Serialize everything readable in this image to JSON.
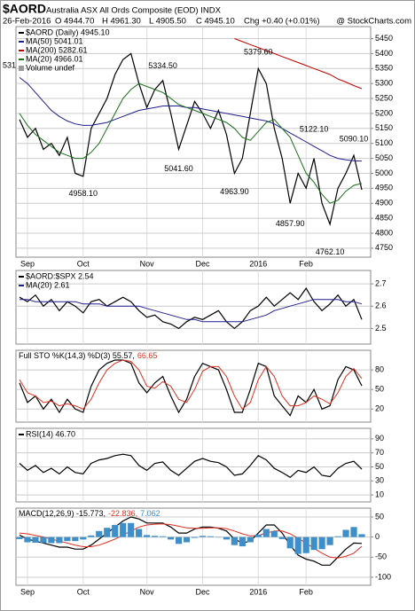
{
  "header": {
    "symbol": "$AORD",
    "title": "Australia ASX All Ords Composite (EOD) INDX",
    "date": "26-Feb-2016",
    "open": "O 4944.70",
    "high": "H 4961.30",
    "low": "L 4905.50",
    "close": "C 4945.10",
    "change": "Chg +0.40 (+0.01%)",
    "credit": "@ StockCharts.com"
  },
  "chart_data": [
    {
      "type": "line",
      "categories": [
        null,
        "Sep",
        null,
        null,
        null,
        null,
        null,
        null,
        "Oct",
        null,
        null,
        null,
        null,
        null,
        null,
        null,
        "Nov",
        null,
        null,
        null,
        null,
        null,
        null,
        "Dec",
        null,
        null,
        null,
        null,
        null,
        null,
        "2016",
        null,
        null,
        null,
        null,
        null,
        "Feb",
        null,
        null,
        null,
        null,
        null,
        null,
        null
      ],
      "ylim": [
        4720,
        5490
      ],
      "yticks": [
        4750,
        4800,
        4850,
        4900,
        4950,
        5000,
        5050,
        5100,
        5150,
        5200,
        5250,
        5300,
        5350,
        5400,
        5450
      ],
      "clipped_label": "531",
      "legend_extra": [
        "Volume undef"
      ],
      "series": [
        {
          "name": "$AORD (Daily) 4945.10",
          "color": "#000000",
          "values": [
            5180,
            5120,
            5150,
            5080,
            5100,
            5060,
            5120,
            5000,
            4990,
            5150,
            5200,
            5250,
            5330,
            5380,
            5400,
            5300,
            5220,
            5280,
            5310,
            5200,
            5080,
            5160,
            5240,
            5200,
            5150,
            5210,
            5130,
            5000,
            5050,
            5200,
            5350,
            5300,
            5150,
            5050,
            4900,
            5000,
            4950,
            5050,
            4900,
            4830,
            4950,
            5000,
            5060,
            4945.1
          ]
        },
        {
          "name": "MA(50) 5041.01",
          "color": "#1f1f8f",
          "values": [
            5320,
            5300,
            5270,
            5240,
            5210,
            5190,
            5175,
            5165,
            5160,
            5160,
            5165,
            5170,
            5180,
            5190,
            5200,
            5210,
            5215,
            5220,
            5225,
            5225,
            5225,
            5220,
            5220,
            5215,
            5210,
            5205,
            5200,
            5195,
            5190,
            5185,
            5180,
            5175,
            5165,
            5150,
            5135,
            5120,
            5105,
            5090,
            5075,
            5060,
            5050,
            5045,
            5042,
            5041.01
          ]
        },
        {
          "name": "MA(200) 5282.61",
          "color": "#c00000",
          "values": [
            null,
            null,
            null,
            null,
            null,
            null,
            null,
            null,
            null,
            null,
            null,
            null,
            null,
            null,
            null,
            null,
            null,
            null,
            null,
            null,
            null,
            null,
            null,
            null,
            null,
            null,
            null,
            5450,
            5440,
            5430,
            5420,
            5410,
            5400,
            5390,
            5380,
            5370,
            5360,
            5350,
            5340,
            5330,
            5315,
            5305,
            5293,
            5282.61
          ]
        },
        {
          "name": "MA(20) 4966.01",
          "color": "#1a6e1a",
          "values": [
            5200,
            5160,
            5130,
            5110,
            5090,
            5070,
            5060,
            5050,
            5050,
            5070,
            5100,
            5150,
            5200,
            5250,
            5280,
            5300,
            5290,
            5280,
            5270,
            5250,
            5230,
            5220,
            5210,
            5200,
            5190,
            5180,
            5170,
            5150,
            5120,
            5110,
            5140,
            5170,
            5180,
            5150,
            5120,
            5060,
            5000,
            4970,
            4930,
            4900,
            4910,
            4940,
            4960,
            4966.01
          ]
        }
      ],
      "annotations": [
        {
          "label": "4958.10",
          "value": 4958.1,
          "index": 8
        },
        {
          "label": "5334.50",
          "value": 5334.5,
          "index": 18
        },
        {
          "label": "5041.60",
          "value": 5041.6,
          "index": 20
        },
        {
          "label": "4963.90",
          "value": 4963.9,
          "index": 27
        },
        {
          "label": "5379.60",
          "value": 5379.6,
          "index": 30
        },
        {
          "label": "4857.90",
          "value": 4857.9,
          "index": 34
        },
        {
          "label": "5122.10",
          "value": 5122.1,
          "index": 37
        },
        {
          "label": "4762.10",
          "value": 4762.1,
          "index": 39
        },
        {
          "label": "5090.10",
          "value": 5090.1,
          "index": 42
        }
      ]
    },
    {
      "type": "line",
      "ylim": [
        2.43,
        2.76
      ],
      "yticks": [
        2.5,
        2.6,
        2.7
      ],
      "series": [
        {
          "name": "$AORD:$SPX 2.54",
          "color": "#000000",
          "values": [
            2.64,
            2.62,
            2.65,
            2.6,
            2.63,
            2.58,
            2.62,
            2.6,
            2.57,
            2.62,
            2.63,
            2.6,
            2.62,
            2.64,
            2.62,
            2.58,
            2.55,
            2.56,
            2.53,
            2.52,
            2.5,
            2.53,
            2.55,
            2.54,
            2.56,
            2.58,
            2.53,
            2.5,
            2.53,
            2.58,
            2.6,
            2.64,
            2.6,
            2.63,
            2.66,
            2.63,
            2.68,
            2.62,
            2.58,
            2.61,
            2.65,
            2.6,
            2.63,
            2.54
          ]
        },
        {
          "name": "MA(20) 2.61",
          "color": "#1f1f8f",
          "values": [
            2.63,
            2.63,
            2.62,
            2.62,
            2.62,
            2.62,
            2.62,
            2.62,
            2.61,
            2.61,
            2.61,
            2.6,
            2.6,
            2.6,
            2.6,
            2.6,
            2.59,
            2.58,
            2.57,
            2.56,
            2.55,
            2.54,
            2.54,
            2.53,
            2.53,
            2.53,
            2.53,
            2.53,
            2.53,
            2.54,
            2.55,
            2.56,
            2.58,
            2.59,
            2.6,
            2.61,
            2.62,
            2.63,
            2.63,
            2.63,
            2.63,
            2.62,
            2.62,
            2.61
          ]
        }
      ]
    },
    {
      "type": "line",
      "ylim": [
        0,
        110
      ],
      "yticks": [
        20,
        50,
        80
      ],
      "legend_inline": true,
      "series": [
        {
          "name": "Full STO %K(14,3) %D(3) 55.57,",
          "color": "#000000",
          "values": [
            60,
            30,
            40,
            20,
            35,
            15,
            35,
            20,
            15,
            55,
            80,
            90,
            95,
            95,
            90,
            60,
            45,
            60,
            70,
            40,
            15,
            35,
            70,
            90,
            85,
            80,
            50,
            15,
            15,
            50,
            90,
            85,
            40,
            25,
            10,
            40,
            30,
            50,
            20,
            25,
            65,
            85,
            80,
            55.57
          ]
        },
        {
          "name": "66.65",
          "color": "#e03020",
          "values": [
            65,
            45,
            40,
            30,
            32,
            25,
            28,
            25,
            20,
            35,
            60,
            80,
            90,
            95,
            93,
            80,
            55,
            52,
            62,
            55,
            35,
            30,
            50,
            78,
            85,
            85,
            70,
            40,
            20,
            30,
            65,
            85,
            70,
            40,
            25,
            25,
            30,
            40,
            35,
            28,
            45,
            70,
            82,
            66.65
          ]
        }
      ]
    },
    {
      "type": "line",
      "ylim": [
        0,
        105
      ],
      "yticks": [
        10,
        30,
        50,
        70,
        90
      ],
      "series": [
        {
          "name": "RSI(14) 46.70",
          "color": "#000000",
          "values": [
            55,
            45,
            52,
            42,
            48,
            40,
            50,
            42,
            40,
            55,
            60,
            62,
            66,
            68,
            66,
            52,
            45,
            55,
            57,
            45,
            38,
            48,
            58,
            62,
            58,
            56,
            50,
            38,
            40,
            52,
            66,
            60,
            48,
            42,
            35,
            45,
            42,
            50,
            38,
            36,
            48,
            55,
            58,
            46.7
          ]
        }
      ]
    },
    {
      "type": "line",
      "ylim": [
        -120,
        72
      ],
      "yticks": [
        -100,
        -50,
        0,
        50
      ],
      "legend_inline": true,
      "categories": [
        null,
        "Sep",
        null,
        null,
        null,
        null,
        null,
        null,
        "Oct",
        null,
        null,
        null,
        null,
        null,
        null,
        null,
        "Nov",
        null,
        null,
        null,
        null,
        null,
        null,
        "Dec",
        null,
        null,
        null,
        null,
        null,
        null,
        "2016",
        null,
        null,
        null,
        null,
        null,
        "Feb",
        null,
        null,
        null,
        null,
        null,
        null,
        null
      ],
      "series": [
        {
          "name": "MACD(12,26,9) -15.773,",
          "color": "#000000",
          "values": [
            5,
            -5,
            -10,
            -15,
            -20,
            -25,
            -25,
            -30,
            -30,
            -20,
            -5,
            10,
            25,
            40,
            50,
            45,
            35,
            35,
            35,
            25,
            10,
            10,
            20,
            25,
            25,
            22,
            15,
            -5,
            -15,
            -10,
            10,
            30,
            30,
            10,
            -20,
            -45,
            -55,
            -60,
            -70,
            -70,
            -50,
            -30,
            -15,
            -15.773
          ]
        },
        {
          "name": "-22.836,",
          "color": "#e03020",
          "values": [
            10,
            8,
            4,
            0,
            -5,
            -10,
            -15,
            -20,
            -24,
            -24,
            -20,
            -13,
            -5,
            5,
            15,
            25,
            30,
            32,
            33,
            31,
            27,
            23,
            22,
            22,
            23,
            23,
            21,
            15,
            8,
            3,
            4,
            10,
            15,
            15,
            8,
            -3,
            -15,
            -28,
            -40,
            -50,
            -52,
            -48,
            -40,
            -22.836
          ]
        },
        {
          "name": "7.062",
          "color": "#3d8ec9",
          "style": "histogram",
          "values": [
            -5,
            -13,
            -14,
            -15,
            -15,
            -15,
            -10,
            -10,
            -6,
            4,
            15,
            23,
            30,
            35,
            35,
            20,
            5,
            3,
            2,
            -6,
            -17,
            -13,
            -2,
            3,
            2,
            -1,
            -6,
            -20,
            -23,
            -13,
            6,
            20,
            15,
            -5,
            -28,
            -42,
            -40,
            -32,
            -30,
            -20,
            2,
            18,
            25,
            7.062
          ]
        }
      ]
    }
  ]
}
